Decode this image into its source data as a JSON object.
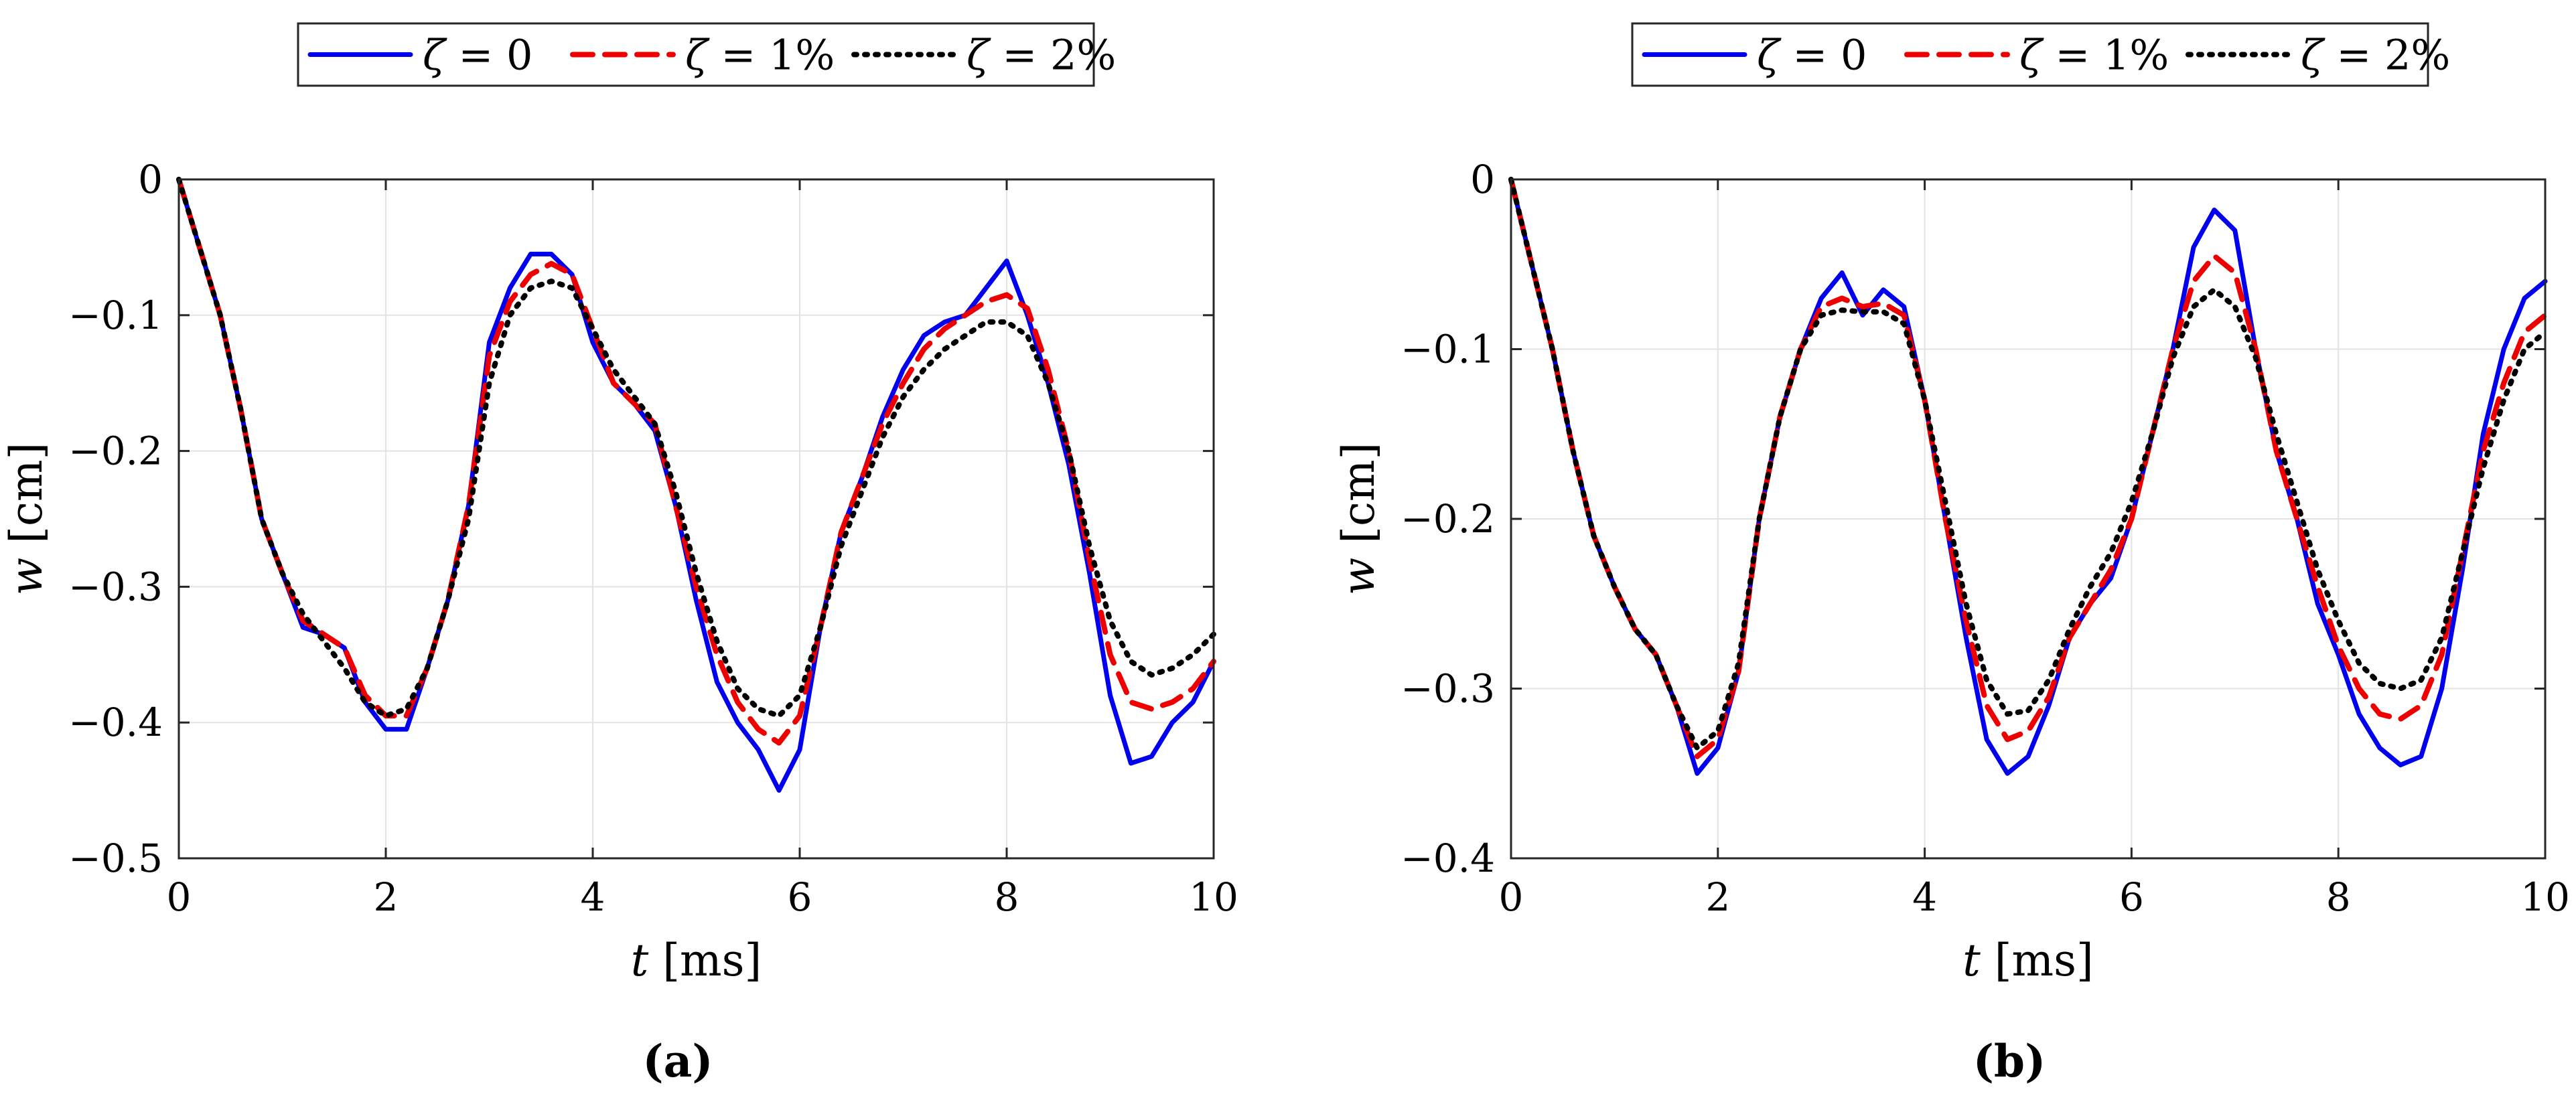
{
  "chart_data": [
    {
      "type": "line",
      "panel_label": "(a)",
      "xlabel": {
        "var": "t",
        "unit": "[ms]"
      },
      "ylabel": {
        "var": "w",
        "unit": "[cm]"
      },
      "xlim": [
        0,
        10
      ],
      "ylim": [
        -0.5,
        0
      ],
      "xticks": [
        "0",
        "2",
        "4",
        "6",
        "8",
        "10"
      ],
      "yticks": [
        "0",
        "−0.1",
        "−0.2",
        "−0.3",
        "−0.4",
        "−0.5"
      ],
      "xtick_values": [
        0,
        2,
        4,
        6,
        8,
        10
      ],
      "ytick_values": [
        0,
        -0.1,
        -0.2,
        -0.3,
        -0.4,
        -0.5
      ],
      "grid": true,
      "legend_position": "top-center, outside",
      "x": [
        0,
        0.2,
        0.4,
        0.6,
        0.8,
        1.0,
        1.2,
        1.4,
        1.6,
        1.8,
        2.0,
        2.2,
        2.4,
        2.6,
        2.8,
        3.0,
        3.2,
        3.4,
        3.6,
        3.8,
        4.0,
        4.2,
        4.4,
        4.6,
        4.8,
        5.0,
        5.2,
        5.4,
        5.6,
        5.8,
        6.0,
        6.2,
        6.4,
        6.6,
        6.8,
        7.0,
        7.2,
        7.4,
        7.6,
        7.8,
        8.0,
        8.2,
        8.4,
        8.6,
        8.8,
        9.0,
        9.2,
        9.4,
        9.6,
        9.8,
        10.0
      ],
      "series": [
        {
          "name": "ζ = 0",
          "color": "#0000ee",
          "dash": "solid",
          "values": [
            0,
            -0.05,
            -0.1,
            -0.17,
            -0.25,
            -0.29,
            -0.33,
            -0.335,
            -0.345,
            -0.385,
            -0.405,
            -0.405,
            -0.36,
            -0.31,
            -0.24,
            -0.12,
            -0.08,
            -0.055,
            -0.055,
            -0.07,
            -0.12,
            -0.15,
            -0.165,
            -0.185,
            -0.24,
            -0.31,
            -0.37,
            -0.4,
            -0.42,
            -0.45,
            -0.42,
            -0.33,
            -0.26,
            -0.22,
            -0.175,
            -0.14,
            -0.115,
            -0.105,
            -0.1,
            -0.08,
            -0.06,
            -0.1,
            -0.15,
            -0.21,
            -0.29,
            -0.38,
            -0.43,
            -0.425,
            -0.4,
            -0.385,
            -0.355
          ]
        },
        {
          "name": "ζ = 1%",
          "color": "#ee0000",
          "dash": "dashed",
          "values": [
            0,
            -0.05,
            -0.1,
            -0.17,
            -0.25,
            -0.29,
            -0.325,
            -0.335,
            -0.345,
            -0.38,
            -0.395,
            -0.395,
            -0.36,
            -0.31,
            -0.24,
            -0.13,
            -0.09,
            -0.07,
            -0.062,
            -0.07,
            -0.11,
            -0.15,
            -0.165,
            -0.18,
            -0.24,
            -0.3,
            -0.35,
            -0.385,
            -0.405,
            -0.415,
            -0.395,
            -0.33,
            -0.26,
            -0.22,
            -0.18,
            -0.15,
            -0.125,
            -0.11,
            -0.1,
            -0.09,
            -0.085,
            -0.095,
            -0.14,
            -0.2,
            -0.28,
            -0.35,
            -0.385,
            -0.39,
            -0.385,
            -0.375,
            -0.355
          ]
        },
        {
          "name": "ζ = 2%",
          "color": "#000000",
          "dash": "dotted",
          "values": [
            0,
            -0.05,
            -0.1,
            -0.17,
            -0.25,
            -0.29,
            -0.32,
            -0.34,
            -0.36,
            -0.385,
            -0.395,
            -0.39,
            -0.36,
            -0.31,
            -0.25,
            -0.15,
            -0.1,
            -0.08,
            -0.075,
            -0.08,
            -0.11,
            -0.14,
            -0.16,
            -0.18,
            -0.23,
            -0.29,
            -0.34,
            -0.375,
            -0.39,
            -0.395,
            -0.38,
            -0.33,
            -0.27,
            -0.23,
            -0.19,
            -0.16,
            -0.14,
            -0.125,
            -0.115,
            -0.105,
            -0.105,
            -0.115,
            -0.15,
            -0.2,
            -0.27,
            -0.325,
            -0.355,
            -0.365,
            -0.36,
            -0.35,
            -0.335
          ]
        }
      ]
    },
    {
      "type": "line",
      "panel_label": "(b)",
      "xlabel": {
        "var": "t",
        "unit": "[ms]"
      },
      "ylabel": {
        "var": "w",
        "unit": "[cm]"
      },
      "xlim": [
        0,
        10
      ],
      "ylim": [
        -0.4,
        0
      ],
      "xticks": [
        "0",
        "2",
        "4",
        "6",
        "8",
        "10"
      ],
      "yticks": [
        "0",
        "−0.1",
        "−0.2",
        "−0.3",
        "−0.4"
      ],
      "xtick_values": [
        0,
        2,
        4,
        6,
        8,
        10
      ],
      "ytick_values": [
        0,
        -0.1,
        -0.2,
        -0.3,
        -0.4
      ],
      "grid": true,
      "legend_position": "top-center, outside",
      "x": [
        0,
        0.2,
        0.4,
        0.6,
        0.8,
        1.0,
        1.2,
        1.4,
        1.6,
        1.8,
        2.0,
        2.2,
        2.4,
        2.6,
        2.8,
        3.0,
        3.2,
        3.4,
        3.6,
        3.8,
        4.0,
        4.2,
        4.4,
        4.6,
        4.8,
        5.0,
        5.2,
        5.4,
        5.6,
        5.8,
        6.0,
        6.2,
        6.4,
        6.6,
        6.8,
        7.0,
        7.2,
        7.4,
        7.6,
        7.8,
        8.0,
        8.2,
        8.4,
        8.6,
        8.8,
        9.0,
        9.2,
        9.4,
        9.6,
        9.8,
        10.0
      ],
      "series": [
        {
          "name": "ζ = 0",
          "color": "#0000ee",
          "dash": "solid",
          "values": [
            0,
            -0.05,
            -0.1,
            -0.16,
            -0.21,
            -0.24,
            -0.265,
            -0.28,
            -0.31,
            -0.35,
            -0.335,
            -0.29,
            -0.2,
            -0.14,
            -0.1,
            -0.07,
            -0.055,
            -0.08,
            -0.065,
            -0.075,
            -0.13,
            -0.2,
            -0.27,
            -0.33,
            -0.35,
            -0.34,
            -0.31,
            -0.27,
            -0.25,
            -0.235,
            -0.2,
            -0.15,
            -0.1,
            -0.04,
            -0.018,
            -0.03,
            -0.1,
            -0.16,
            -0.2,
            -0.25,
            -0.28,
            -0.315,
            -0.335,
            -0.345,
            -0.34,
            -0.3,
            -0.23,
            -0.15,
            -0.1,
            -0.07,
            -0.06
          ]
        },
        {
          "name": "ζ = 1%",
          "color": "#ee0000",
          "dash": "dashed",
          "values": [
            0,
            -0.05,
            -0.1,
            -0.16,
            -0.21,
            -0.24,
            -0.265,
            -0.28,
            -0.31,
            -0.34,
            -0.33,
            -0.29,
            -0.2,
            -0.14,
            -0.1,
            -0.075,
            -0.07,
            -0.075,
            -0.073,
            -0.08,
            -0.13,
            -0.2,
            -0.26,
            -0.31,
            -0.33,
            -0.325,
            -0.305,
            -0.27,
            -0.25,
            -0.23,
            -0.2,
            -0.15,
            -0.1,
            -0.06,
            -0.045,
            -0.055,
            -0.1,
            -0.16,
            -0.2,
            -0.24,
            -0.275,
            -0.3,
            -0.315,
            -0.318,
            -0.31,
            -0.28,
            -0.22,
            -0.16,
            -0.12,
            -0.09,
            -0.08
          ]
        },
        {
          "name": "ζ = 2%",
          "color": "#000000",
          "dash": "dotted",
          "values": [
            0,
            -0.05,
            -0.1,
            -0.16,
            -0.21,
            -0.24,
            -0.265,
            -0.28,
            -0.31,
            -0.335,
            -0.325,
            -0.285,
            -0.2,
            -0.14,
            -0.1,
            -0.08,
            -0.077,
            -0.078,
            -0.078,
            -0.085,
            -0.13,
            -0.19,
            -0.25,
            -0.295,
            -0.315,
            -0.313,
            -0.295,
            -0.265,
            -0.24,
            -0.22,
            -0.19,
            -0.15,
            -0.105,
            -0.075,
            -0.065,
            -0.075,
            -0.105,
            -0.15,
            -0.19,
            -0.23,
            -0.26,
            -0.285,
            -0.297,
            -0.3,
            -0.295,
            -0.27,
            -0.22,
            -0.17,
            -0.13,
            -0.1,
            -0.09
          ]
        }
      ]
    }
  ]
}
